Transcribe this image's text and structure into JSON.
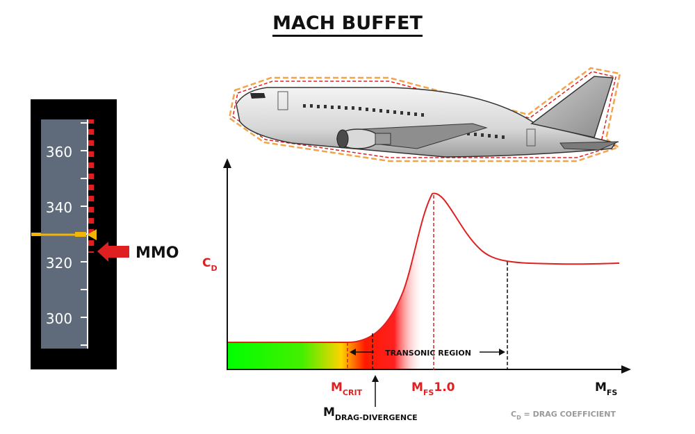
{
  "title": "MACH BUFFET",
  "speed_tape": {
    "ticks": [
      "360",
      "340",
      "320",
      "300"
    ],
    "limit_label": "MMO"
  },
  "graph": {
    "y_axis_label": {
      "base": "C",
      "sub": "D"
    },
    "x_axis_label": {
      "base": "M",
      "sub": "FS"
    },
    "m_crit_label": {
      "base": "M",
      "sub": "CRIT"
    },
    "m_fs_label": {
      "base": "M",
      "sub": "FS",
      "value": "1.0"
    },
    "m_dd_label": {
      "base": "M",
      "sub": "DRAG-DIVERGENCE"
    },
    "transonic_label": "TRANSONIC REGION",
    "footnote": {
      "base": "C",
      "sub": "D",
      "rest": " = DRAG COEFFICIENT"
    }
  },
  "colors": {
    "accent_red": "#e02020",
    "tape_gray": "#5f6b7a",
    "marker_yellow": "#f2b705",
    "green": "#00ff00",
    "footnote_gray": "#9a9a9a"
  }
}
